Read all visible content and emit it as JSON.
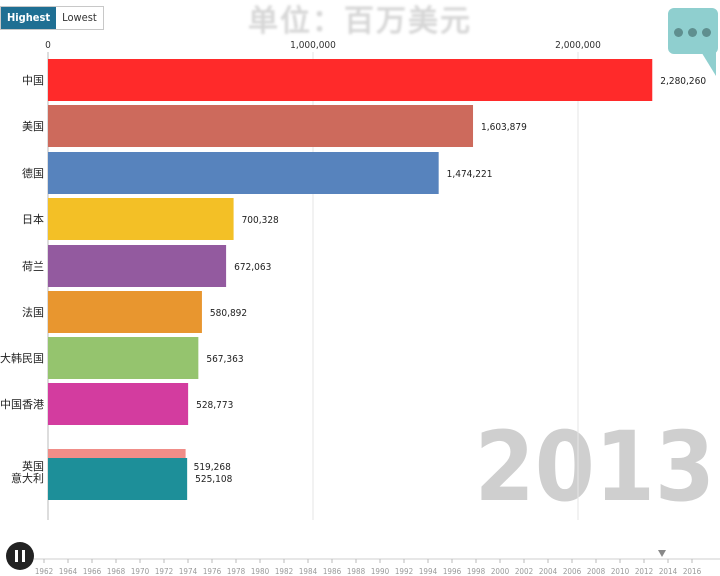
{
  "toggle": {
    "highest": "Highest",
    "lowest": "Lowest"
  },
  "title": "单位：百万美元",
  "year": "2013",
  "timeline": {
    "years": [
      "1962",
      "1964",
      "1966",
      "1968",
      "1970",
      "1972",
      "1974",
      "1976",
      "1978",
      "1980",
      "1982",
      "1984",
      "1986",
      "1988",
      "1990",
      "1992",
      "1994",
      "1996",
      "1998",
      "2000",
      "2002",
      "2004",
      "2006",
      "2008",
      "2010",
      "2012",
      "2014",
      "2016"
    ],
    "current_index": 26
  },
  "chart_data": {
    "type": "bar",
    "orientation": "horizontal",
    "title": "单位：百万美元",
    "xlim": [
      0,
      2300000
    ],
    "x_ticks": [
      "0",
      "1,000,000",
      "2,000,000"
    ],
    "x_tick_values": [
      0,
      1000000,
      2000000
    ],
    "grid": true,
    "bars": [
      {
        "category": "中国",
        "value": 2280260,
        "label": "2,280,260",
        "color": "#ff2a2a"
      },
      {
        "category": "美国",
        "value": 1603879,
        "label": "1,603,879",
        "color": "#cd6a5c"
      },
      {
        "category": "德国",
        "value": 1474221,
        "label": "1,474,221",
        "color": "#5783bd"
      },
      {
        "category": "日本",
        "value": 700328,
        "label": "700,328",
        "color": "#f3c026"
      },
      {
        "category": "荷兰",
        "value": 672063,
        "label": "672,063",
        "color": "#935a9f"
      },
      {
        "category": "法国",
        "value": 580892,
        "label": "580,892",
        "color": "#e8962f"
      },
      {
        "category": "大韩民国",
        "value": 567363,
        "label": "567,363",
        "color": "#95c46e"
      },
      {
        "category": "中国香港",
        "value": 528773,
        "label": "528,773",
        "color": "#d33c9f"
      },
      {
        "category": "英国",
        "value": 519268,
        "label": "519,268",
        "color": "#f08d88"
      },
      {
        "category": "意大利",
        "value": 525108,
        "label": "525,108",
        "color": "#1d8f99"
      }
    ]
  }
}
